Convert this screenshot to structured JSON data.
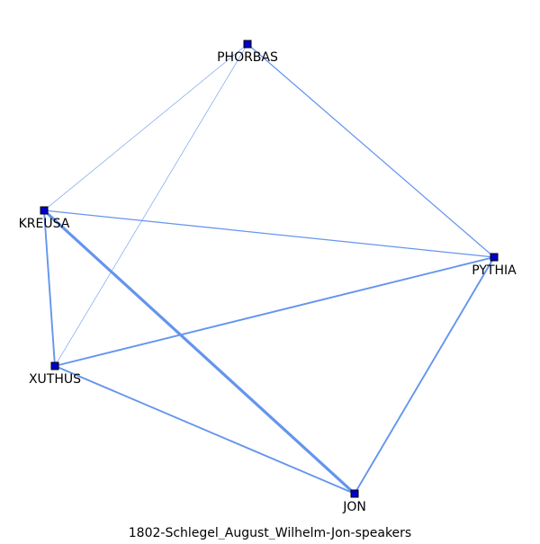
{
  "caption": "1802-Schlegel_August_Wilhelm-Jon-speakers",
  "colors": {
    "edge": "#6495ed",
    "node_fill": "#0000cc",
    "node_stroke": "#000000",
    "label": "#000000",
    "background": "#ffffff"
  },
  "nodes": [
    {
      "id": "PHORBAS",
      "label": "PHORBAS"
    },
    {
      "id": "KREUSA",
      "label": "KREUSA"
    },
    {
      "id": "PYTHIA",
      "label": "PYTHIA"
    },
    {
      "id": "XUTHUS",
      "label": "XUTHUS"
    },
    {
      "id": "JON",
      "label": "JON"
    }
  ],
  "edges": [
    {
      "source": "PHORBAS",
      "target": "KREUSA",
      "weight": 1
    },
    {
      "source": "PHORBAS",
      "target": "XUTHUS",
      "weight": 1
    },
    {
      "source": "PHORBAS",
      "target": "PYTHIA",
      "weight": 2
    },
    {
      "source": "KREUSA",
      "target": "PYTHIA",
      "weight": 2
    },
    {
      "source": "KREUSA",
      "target": "XUTHUS",
      "weight": 3
    },
    {
      "source": "KREUSA",
      "target": "JON",
      "weight": 5
    },
    {
      "source": "XUTHUS",
      "target": "PYTHIA",
      "weight": 3
    },
    {
      "source": "XUTHUS",
      "target": "JON",
      "weight": 3
    },
    {
      "source": "PYTHIA",
      "target": "JON",
      "weight": 3
    }
  ]
}
